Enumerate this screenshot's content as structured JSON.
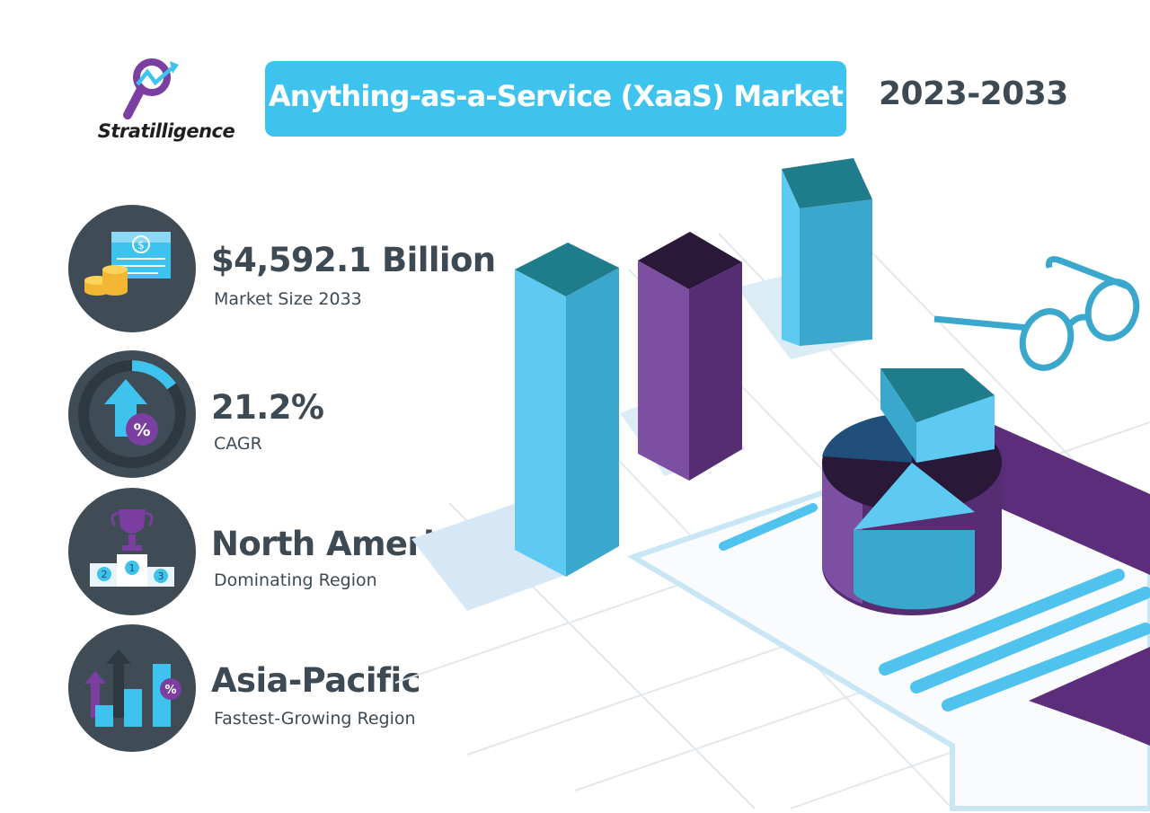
{
  "brand": {
    "name": "Stratilligence",
    "icon": "magnifier-trend-icon"
  },
  "header": {
    "title": "Anything-as-a-Service (XaaS) Market",
    "period": "2023-2033"
  },
  "stats": [
    {
      "value": "$4,592.1 Billion",
      "label": "Market Size 2033",
      "icon": "money-stack-icon"
    },
    {
      "value": "21.2%",
      "label": "CAGR",
      "icon": "growth-percent-icon"
    },
    {
      "value": "North America",
      "label": "Dominating Region",
      "icon": "podium-trophy-icon"
    },
    {
      "value": "Asia-Pacific",
      "label": "Fastest-Growing Region",
      "icon": "rising-bars-icon"
    }
  ],
  "colors": {
    "accent": "#3ec3ee",
    "text": "#3d4a54",
    "icon_bg": "#3f4b55",
    "purple": "#5b2d7a",
    "teal": "#1f7c8a"
  }
}
